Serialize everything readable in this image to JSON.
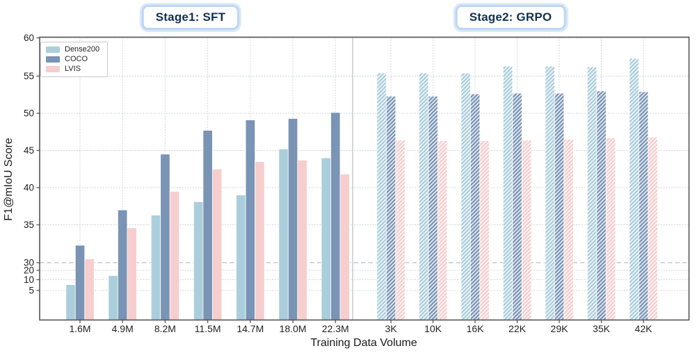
{
  "stage_badges": [
    {
      "label": "Stage1: SFT"
    },
    {
      "label": "Stage2: GRPO"
    }
  ],
  "style": {
    "badge_border_color": "#BCD7F4",
    "badge_text_color": "#10304F",
    "grid_color": "#CDD3D8",
    "dashed_line_color": "#B4BEC6",
    "separator_color": "#C7CBCE",
    "spine_color": "#555555",
    "tick_label_color": "#1F1F1F",
    "hatch_color": "#FFFFFF",
    "series_colors": {
      "Dense200": "#ABCEDC",
      "COCO": "#7A94B6",
      "LVIS": "#F5CECD"
    }
  },
  "chart_data": {
    "type": "bar",
    "title": "",
    "xlabel": "Training Data Volume",
    "ylabel": "F1@mIoU Score",
    "yticks": [
      5,
      10,
      20,
      30,
      35,
      40,
      45,
      50,
      55,
      60
    ],
    "y_scale_note": "non-linear axis: compressed below 30, linear 30-60",
    "ylim": [
      0,
      60
    ],
    "reference_line_y": 30,
    "grid": true,
    "legend_position": "upper-left",
    "legend": [
      "Dense200",
      "COCO",
      "LVIS"
    ],
    "panels": [
      {
        "label": "Stage1: SFT",
        "hatched": false,
        "categories": [
          "1.6M",
          "4.9M",
          "8.2M",
          "11.5M",
          "14.7M",
          "18.0M",
          "22.3M"
        ],
        "series": [
          {
            "name": "Dense200",
            "values": [
              7.7,
              14.3,
              36.3,
              38.1,
              39.0,
              45.2,
              44.0
            ]
          },
          {
            "name": "COCO",
            "values": [
              32.3,
              37.0,
              44.5,
              47.7,
              49.1,
              49.3,
              50.1
            ]
          },
          {
            "name": "LVIS",
            "values": [
              30.5,
              34.6,
              39.5,
              42.5,
              43.5,
              43.7,
              41.8
            ]
          }
        ]
      },
      {
        "label": "Stage2: GRPO",
        "hatched": true,
        "categories": [
          "3K",
          "10K",
          "16K",
          "22K",
          "29K",
          "35K",
          "42K"
        ],
        "series": [
          {
            "name": "Dense200",
            "values": [
              55.4,
              55.4,
              55.4,
              56.3,
              56.3,
              56.2,
              57.3
            ]
          },
          {
            "name": "COCO",
            "values": [
              52.3,
              52.3,
              52.6,
              52.7,
              52.7,
              53.0,
              52.9
            ]
          },
          {
            "name": "LVIS",
            "values": [
              46.4,
              46.3,
              46.3,
              46.4,
              46.5,
              46.7,
              46.8
            ]
          }
        ]
      }
    ]
  }
}
